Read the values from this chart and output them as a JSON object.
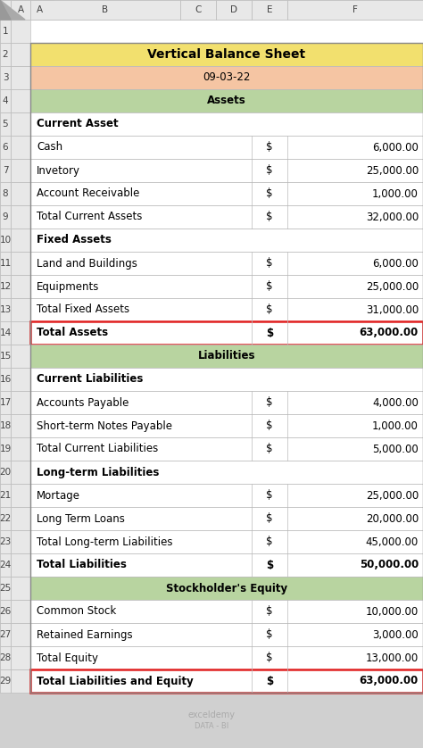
{
  "title_bg": "#F2E06E",
  "date_bg": "#F5C5A3",
  "section_bg": "#B8D4A0",
  "white_bg": "#FFFFFF",
  "gray_bg": "#E8E8E8",
  "outer_bg": "#D0D0D0",
  "border_gray": "#AAAAAA",
  "border_dark": "#888888",
  "border_red": "#E02020",
  "rows": [
    {
      "label": "Vertical Balance Sheet",
      "type": "title",
      "bg": "#F2E06E",
      "bold": true,
      "dollar": false,
      "value": "",
      "center": true,
      "red_border": false
    },
    {
      "label": "09-03-22",
      "type": "date",
      "bg": "#F5C5A3",
      "bold": false,
      "dollar": false,
      "value": "",
      "center": true,
      "red_border": false
    },
    {
      "label": "Assets",
      "type": "section",
      "bg": "#B8D4A0",
      "bold": true,
      "dollar": false,
      "value": "",
      "center": true,
      "red_border": false
    },
    {
      "label": "Current Asset",
      "type": "header",
      "bg": "#FFFFFF",
      "bold": true,
      "dollar": false,
      "value": "",
      "center": false,
      "red_border": false
    },
    {
      "label": "Cash",
      "type": "item",
      "bg": "#FFFFFF",
      "bold": false,
      "dollar": true,
      "value": "6,000.00",
      "center": false,
      "red_border": false
    },
    {
      "label": "Invetory",
      "type": "item",
      "bg": "#FFFFFF",
      "bold": false,
      "dollar": true,
      "value": "25,000.00",
      "center": false,
      "red_border": false
    },
    {
      "label": "Account Receivable",
      "type": "item",
      "bg": "#FFFFFF",
      "bold": false,
      "dollar": true,
      "value": "1,000.00",
      "center": false,
      "red_border": false
    },
    {
      "label": "Total Current Assets",
      "type": "item",
      "bg": "#FFFFFF",
      "bold": false,
      "dollar": true,
      "value": "32,000.00",
      "center": false,
      "red_border": false
    },
    {
      "label": "Fixed Assets",
      "type": "header",
      "bg": "#FFFFFF",
      "bold": true,
      "dollar": false,
      "value": "",
      "center": false,
      "red_border": false
    },
    {
      "label": "Land and Buildings",
      "type": "item",
      "bg": "#FFFFFF",
      "bold": false,
      "dollar": true,
      "value": "6,000.00",
      "center": false,
      "red_border": false
    },
    {
      "label": "Equipments",
      "type": "item",
      "bg": "#FFFFFF",
      "bold": false,
      "dollar": true,
      "value": "25,000.00",
      "center": false,
      "red_border": false
    },
    {
      "label": "Total Fixed Assets",
      "type": "item",
      "bg": "#FFFFFF",
      "bold": false,
      "dollar": true,
      "value": "31,000.00",
      "center": false,
      "red_border": false
    },
    {
      "label": "Total Assets",
      "type": "total",
      "bg": "#FFFFFF",
      "bold": true,
      "dollar": true,
      "value": "63,000.00",
      "center": false,
      "red_border": true
    },
    {
      "label": "Liabilities",
      "type": "section",
      "bg": "#B8D4A0",
      "bold": true,
      "dollar": false,
      "value": "",
      "center": true,
      "red_border": false
    },
    {
      "label": "Current Liabilities",
      "type": "header",
      "bg": "#FFFFFF",
      "bold": true,
      "dollar": false,
      "value": "",
      "center": false,
      "red_border": false
    },
    {
      "label": "Accounts Payable",
      "type": "item",
      "bg": "#FFFFFF",
      "bold": false,
      "dollar": true,
      "value": "4,000.00",
      "center": false,
      "red_border": false
    },
    {
      "label": "Short-term Notes Payable",
      "type": "item",
      "bg": "#FFFFFF",
      "bold": false,
      "dollar": true,
      "value": "1,000.00",
      "center": false,
      "red_border": false
    },
    {
      "label": "Total Current Liabilities",
      "type": "item",
      "bg": "#FFFFFF",
      "bold": false,
      "dollar": true,
      "value": "5,000.00",
      "center": false,
      "red_border": false
    },
    {
      "label": "Long-term Liabilities",
      "type": "header",
      "bg": "#FFFFFF",
      "bold": true,
      "dollar": false,
      "value": "",
      "center": false,
      "red_border": false
    },
    {
      "label": "Mortage",
      "type": "item",
      "bg": "#FFFFFF",
      "bold": false,
      "dollar": true,
      "value": "25,000.00",
      "center": false,
      "red_border": false
    },
    {
      "label": "Long Term Loans",
      "type": "item",
      "bg": "#FFFFFF",
      "bold": false,
      "dollar": true,
      "value": "20,000.00",
      "center": false,
      "red_border": false
    },
    {
      "label": "Total Long-term Liabilities",
      "type": "item",
      "bg": "#FFFFFF",
      "bold": false,
      "dollar": true,
      "value": "45,000.00",
      "center": false,
      "red_border": false
    },
    {
      "label": "Total Liabilities",
      "type": "total",
      "bg": "#FFFFFF",
      "bold": true,
      "dollar": true,
      "value": "50,000.00",
      "center": false,
      "red_border": false
    },
    {
      "label": "Stockholder's Equity",
      "type": "section",
      "bg": "#B8D4A0",
      "bold": true,
      "dollar": false,
      "value": "",
      "center": true,
      "red_border": false
    },
    {
      "label": "Common Stock",
      "type": "item",
      "bg": "#FFFFFF",
      "bold": false,
      "dollar": true,
      "value": "10,000.00",
      "center": false,
      "red_border": false
    },
    {
      "label": "Retained Earnings",
      "type": "item",
      "bg": "#FFFFFF",
      "bold": false,
      "dollar": true,
      "value": "3,000.00",
      "center": false,
      "red_border": false
    },
    {
      "label": "Total Equity",
      "type": "item",
      "bg": "#FFFFFF",
      "bold": false,
      "dollar": true,
      "value": "13,000.00",
      "center": false,
      "red_border": false
    },
    {
      "label": "Total Liabilities and Equity",
      "type": "total",
      "bg": "#FFFFFF",
      "bold": true,
      "dollar": true,
      "value": "63,000.00",
      "center": false,
      "red_border": true
    }
  ],
  "col_names": [
    "A",
    "B",
    "C",
    "D",
    "E",
    "F"
  ],
  "watermark": "exceldemy",
  "watermark_line2": "DATA - BI"
}
